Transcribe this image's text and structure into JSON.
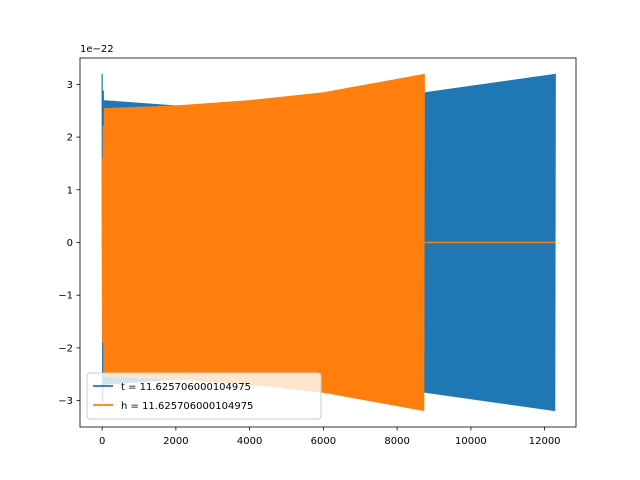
{
  "chart_data": {
    "type": "line",
    "title": "",
    "xlabel": "",
    "ylabel": "",
    "offset_label": "1e−22",
    "xlim": [
      -600,
      12850
    ],
    "ylim": [
      -3.5e-22,
      3.5e-22
    ],
    "xticks": [
      0,
      2000,
      4000,
      6000,
      8000,
      10000,
      12000
    ],
    "xtick_labels": [
      "0",
      "2000",
      "4000",
      "6000",
      "8000",
      "10000",
      "12000"
    ],
    "yticks": [
      -3e-22,
      -2e-22,
      -1e-22,
      0,
      1e-22,
      2e-22,
      3e-22
    ],
    "ytick_labels": [
      "−3",
      "−2",
      "−1",
      "0",
      "1",
      "2",
      "3"
    ],
    "grid": false,
    "legend_position": "lower-left",
    "series": [
      {
        "name": "t = 11.625706000104975",
        "color": "#1f77b4",
        "x_range": [
          0,
          12290
        ],
        "envelope": [
          [
            0,
            3.2e-22
          ],
          [
            50,
            2.7e-22
          ],
          [
            2000,
            2.6e-22
          ],
          [
            6000,
            2.7e-22
          ],
          [
            8750,
            2.85e-22
          ],
          [
            12290,
            3.2e-22
          ]
        ]
      },
      {
        "name": "h = 11.625706000104975",
        "color": "#ff7f0e",
        "x_range": [
          0,
          12290
        ],
        "nonzero_until": 8750,
        "envelope": [
          [
            0,
            1.6e-22
          ],
          [
            50,
            2.55e-22
          ],
          [
            2000,
            2.6e-22
          ],
          [
            4000,
            2.7e-22
          ],
          [
            6000,
            2.85e-22
          ],
          [
            8750,
            3.2e-22
          ]
        ]
      }
    ]
  }
}
